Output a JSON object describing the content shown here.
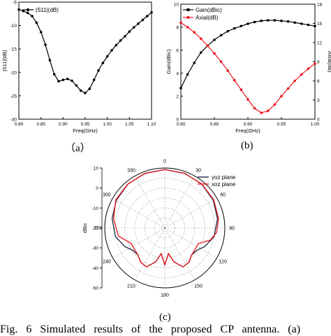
{
  "colors": {
    "black": "#000000",
    "red": "#e8161b",
    "grid": "#9a9a9a"
  },
  "labels": {
    "a": "（a）",
    "b": "(b)",
    "c": "(c)"
  },
  "caption": "Fig. 6 Simulated results of the proposed CP antenna. (a)",
  "chart_data": [
    {
      "type": "line",
      "xlabel": "Freq(GHz)",
      "ylabel": "|S11|(dB)",
      "xlim": [
        0.8,
        1.1
      ],
      "ylim": [
        -30,
        -5
      ],
      "xticks": [
        "0.80",
        "0.85",
        "0.90",
        "0.95",
        "1.00",
        "1.05",
        "1.10"
      ],
      "yticks": [
        "-30",
        "-25",
        "-20",
        "-15",
        "-10",
        "-5"
      ],
      "legend": "top-left",
      "series": [
        {
          "name": "|S11|(dB)",
          "color": "#000000",
          "x": [
            0.8,
            0.81,
            0.82,
            0.83,
            0.84,
            0.85,
            0.86,
            0.87,
            0.88,
            0.89,
            0.9,
            0.91,
            0.92,
            0.93,
            0.94,
            0.95,
            0.96,
            0.97,
            0.98,
            0.99,
            1.0,
            1.01,
            1.02,
            1.03,
            1.04,
            1.05,
            1.06,
            1.07,
            1.08,
            1.09,
            1.1
          ],
          "y": [
            -6.6,
            -6.9,
            -7.3,
            -8.0,
            -9.4,
            -11.4,
            -14.1,
            -17.4,
            -20.4,
            -21.9,
            -21.6,
            -21.4,
            -21.8,
            -22.8,
            -23.9,
            -24.4,
            -23.5,
            -21.6,
            -19.6,
            -18.0,
            -16.6,
            -15.3,
            -14.2,
            -13.2,
            -12.3,
            -11.3,
            -10.4,
            -9.6,
            -8.8,
            -8.0,
            -7.2
          ]
        }
      ]
    },
    {
      "type": "line",
      "xlabel": "Freq(GHz)",
      "ylabel": "Gain(dBic)",
      "ylabel2": "Axial(dB)",
      "xlim": [
        0.8,
        1.0
      ],
      "ylim": [
        0,
        10
      ],
      "ylim2": [
        0,
        18
      ],
      "xticks": [
        "0.80",
        "0.85",
        "0.90",
        "0.95",
        "1.00"
      ],
      "yticks": [
        "0",
        "2",
        "4",
        "6",
        "8",
        "10"
      ],
      "yticks2": [
        "0",
        "3",
        "6",
        "9",
        "12",
        "15",
        "18"
      ],
      "legend": "top-left",
      "series": [
        {
          "name": "Gain(dBic)",
          "color": "#000000",
          "axis": "left",
          "x": [
            0.8,
            0.81,
            0.82,
            0.83,
            0.84,
            0.85,
            0.86,
            0.87,
            0.88,
            0.89,
            0.9,
            0.91,
            0.92,
            0.93,
            0.94,
            0.95,
            0.96,
            0.97,
            0.98,
            0.99,
            1.0
          ],
          "y": [
            2.7,
            3.9,
            4.9,
            5.8,
            6.4,
            6.9,
            7.3,
            7.65,
            7.9,
            8.1,
            8.3,
            8.45,
            8.55,
            8.6,
            8.6,
            8.55,
            8.5,
            8.4,
            8.3,
            8.2,
            8.1
          ]
        },
        {
          "name": "Axial(dB)",
          "color": "#e8161b",
          "axis": "right",
          "x": [
            0.8,
            0.81,
            0.82,
            0.83,
            0.84,
            0.85,
            0.86,
            0.87,
            0.88,
            0.89,
            0.9,
            0.91,
            0.92,
            0.93,
            0.94,
            0.95,
            0.96,
            0.97,
            0.98,
            0.99,
            1.0
          ],
          "y": [
            15.1,
            14.4,
            13.6,
            12.6,
            11.5,
            10.3,
            9.0,
            7.6,
            6.1,
            4.6,
            3.1,
            1.7,
            1.0,
            1.3,
            2.3,
            3.6,
            4.8,
            6.0,
            7.0,
            7.9,
            8.7
          ]
        }
      ]
    },
    {
      "type": "polar",
      "ylabel": "dBic",
      "angle_ticks": [
        "0",
        "30",
        "60",
        "90",
        "120",
        "150",
        "180",
        "210",
        "240",
        "270",
        "300",
        "330"
      ],
      "radial_ticks": [
        "10",
        "0",
        "-10",
        "-20",
        "-30",
        "-40",
        "-50"
      ],
      "rlim": [
        -50,
        10
      ],
      "legend": "top-right",
      "series": [
        {
          "name": "yoz plane",
          "color": "#1a2540",
          "theta": [
            0,
            20,
            40,
            60,
            80,
            100,
            115,
            125,
            135,
            145,
            155,
            165,
            172,
            180,
            188,
            195,
            205,
            215,
            225,
            235,
            245,
            260,
            280,
            300,
            320,
            340,
            360
          ],
          "r": [
            8.5,
            8.2,
            7.3,
            5.8,
            3.5,
            0,
            -6,
            -11,
            -12,
            -8,
            -7,
            -15,
            -24,
            -13,
            -24,
            -15,
            -7,
            -8,
            -12,
            -11,
            -6,
            0,
            3.5,
            5.8,
            7.3,
            8.2,
            8.5
          ]
        },
        {
          "name": "xoz plane",
          "color": "#e8161b",
          "theta": [
            0,
            20,
            40,
            60,
            80,
            95,
            105,
            115,
            125,
            135,
            145,
            155,
            165,
            172,
            180,
            188,
            195,
            205,
            215,
            225,
            235,
            245,
            260,
            280,
            300,
            320,
            340,
            360
          ],
          "r": [
            8.5,
            8.0,
            7.5,
            6.5,
            4.5,
            2,
            -3,
            -13,
            -13,
            -12,
            -8,
            -7,
            -15,
            -24,
            -13,
            -24,
            -15,
            -7,
            -8,
            -12,
            -13,
            -13,
            -3,
            2,
            6.5,
            7.5,
            8.0,
            8.5
          ]
        }
      ]
    }
  ]
}
